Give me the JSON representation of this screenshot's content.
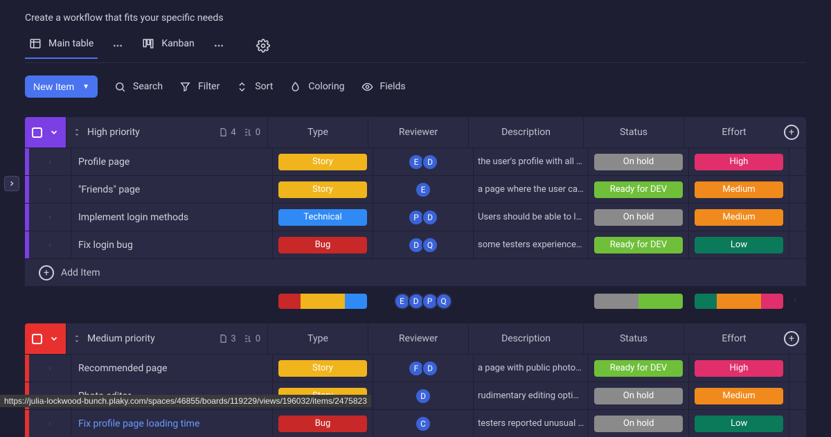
{
  "subtitle": "Create a workflow that fits your specific needs",
  "tabs": {
    "main": "Main table",
    "kanban": "Kanban"
  },
  "toolbar": {
    "new_item": "New Item",
    "search": "Search",
    "filter": "Filter",
    "sort": "Sort",
    "coloring": "Coloring",
    "fields": "Fields"
  },
  "columns": {
    "type": "Type",
    "reviewer": "Reviewer",
    "description": "Description",
    "status": "Status",
    "effort": "Effort"
  },
  "colors": {
    "accent_high": "#7b3fe4",
    "accent_med": "#e8312f",
    "story": "#f0b41c",
    "technical": "#2f8af5",
    "bug": "#c82828",
    "onhold": "#8a8a8a",
    "ready": "#6fbf3a",
    "high": "#e02f6b",
    "medium": "#f08a1c",
    "low": "#0a7a5a",
    "avatar": "#3b63d8"
  },
  "groups": [
    {
      "name": "High priority",
      "accent": "#7b3fe4",
      "counts": {
        "items": "4",
        "subtasks": "0"
      },
      "rows": [
        {
          "name": "Profile page",
          "type": "Story",
          "type_color": "#f0b41c",
          "reviewers": [
            "E",
            "D"
          ],
          "desc": "the user's profile with all …",
          "status": "On hold",
          "status_color": "#8a8a8a",
          "effort": "High",
          "effort_color": "#e02f6b"
        },
        {
          "name": "\"Friends\" page",
          "type": "Story",
          "type_color": "#f0b41c",
          "reviewers": [
            "E"
          ],
          "desc": "a page where the user ca…",
          "status": "Ready for DEV",
          "status_color": "#6fbf3a",
          "effort": "Medium",
          "effort_color": "#f08a1c"
        },
        {
          "name": "Implement login methods",
          "type": "Technical",
          "type_color": "#2f8af5",
          "reviewers": [
            "P",
            "D"
          ],
          "desc": "Users should be able to l…",
          "status": "On hold",
          "status_color": "#8a8a8a",
          "effort": "Medium",
          "effort_color": "#f08a1c"
        },
        {
          "name": "Fix login bug",
          "type": "Bug",
          "type_color": "#c82828",
          "reviewers": [
            "D",
            "Q"
          ],
          "desc": "some testers experience…",
          "status": "Ready for DEV",
          "status_color": "#6fbf3a",
          "effort": "Low",
          "effort_color": "#0a7a5a"
        }
      ],
      "add_item_label": "Add Item",
      "summary": {
        "type_segments": [
          {
            "color": "#c82828",
            "width": 25
          },
          {
            "color": "#f0b41c",
            "width": 50
          },
          {
            "color": "#2f8af5",
            "width": 25
          }
        ],
        "reviewers": [
          "E",
          "D",
          "P",
          "Q"
        ],
        "status_segments": [
          {
            "color": "#8a8a8a",
            "width": 50
          },
          {
            "color": "#6fbf3a",
            "width": 50
          }
        ],
        "effort_segments": [
          {
            "color": "#0a7a5a",
            "width": 25
          },
          {
            "color": "#f08a1c",
            "width": 50
          },
          {
            "color": "#e02f6b",
            "width": 25
          }
        ]
      }
    },
    {
      "name": "Medium priority",
      "accent": "#e8312f",
      "counts": {
        "items": "3",
        "subtasks": "0"
      },
      "rows": [
        {
          "name": "Recommended page",
          "type": "Story",
          "type_color": "#f0b41c",
          "reviewers": [
            "F",
            "D"
          ],
          "desc": "a page with public photo…",
          "status": "Ready for DEV",
          "status_color": "#6fbf3a",
          "effort": "High",
          "effort_color": "#e02f6b"
        },
        {
          "name": "Photo editor",
          "type": "Story",
          "type_color": "#f0b41c",
          "reviewers": [
            "D"
          ],
          "desc": "rudimentary editing opti…",
          "status": "On hold",
          "status_color": "#8a8a8a",
          "effort": "Medium",
          "effort_color": "#f08a1c"
        },
        {
          "name": "Fix profile page loading time",
          "link": true,
          "type": "Bug",
          "type_color": "#c82828",
          "reviewers": [
            "C"
          ],
          "desc": "testers reported unusual …",
          "status": "On hold",
          "status_color": "#8a8a8a",
          "effort": "Low",
          "effort_color": "#0a7a5a"
        }
      ]
    }
  ],
  "status_url": "https://julia-lockwood-bunch.plaky.com/spaces/46855/boards/119229/views/196032/items/2475823"
}
